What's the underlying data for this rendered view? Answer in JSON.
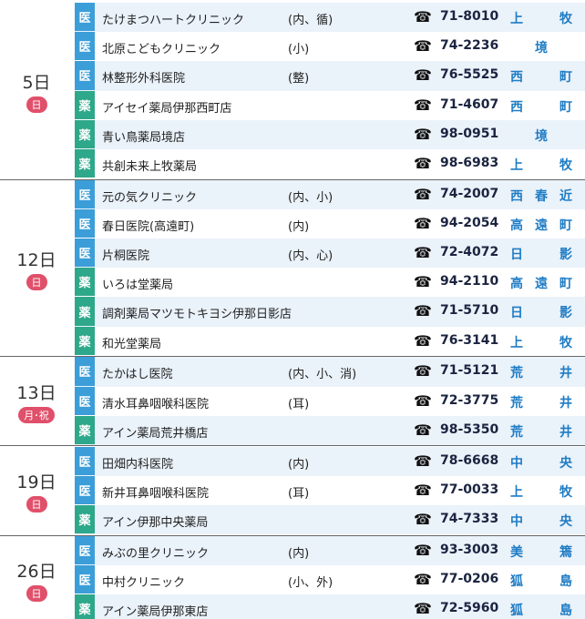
{
  "groups": [
    {
      "date": "5日",
      "day": "日",
      "rows": [
        {
          "type": "医",
          "name": "たけまつハートクリニック",
          "spec": "(内、循)",
          "phone": "71-8010",
          "area": "上牧"
        },
        {
          "type": "医",
          "name": "北原こどもクリニック",
          "spec": "(小)",
          "phone": "74-2236",
          "area": "境"
        },
        {
          "type": "医",
          "name": "林整形外科医院",
          "spec": "(整)",
          "phone": "76-5525",
          "area": "西町"
        },
        {
          "type": "薬",
          "name": "アイセイ薬局伊那西町店",
          "phone": "71-4607",
          "area": "西町"
        },
        {
          "type": "薬",
          "name": "青い鳥薬局境店",
          "phone": "98-0951",
          "area": "境"
        },
        {
          "type": "薬",
          "name": "共創未来上牧薬局",
          "phone": "98-6983",
          "area": "上牧"
        }
      ]
    },
    {
      "date": "12日",
      "day": "日",
      "rows": [
        {
          "type": "医",
          "name": "元の気クリニック",
          "spec": "(内、小)",
          "phone": "74-2007",
          "area": "西春近"
        },
        {
          "type": "医",
          "name": "春日医院(高遠町)",
          "spec": "(内)",
          "phone": "94-2054",
          "area": "高遠町"
        },
        {
          "type": "医",
          "name": "片桐医院",
          "spec": "(内、心)",
          "phone": "72-4072",
          "area": "日影"
        },
        {
          "type": "薬",
          "name": "いろは堂薬局",
          "phone": "94-2110",
          "area": "高遠町"
        },
        {
          "type": "薬",
          "name": "調剤薬局マツモトキヨシ伊那日影店",
          "phone": "71-5710",
          "area": "日影"
        },
        {
          "type": "薬",
          "name": "和光堂薬局",
          "phone": "76-3141",
          "area": "上牧"
        }
      ]
    },
    {
      "date": "13日",
      "day": "月･祝",
      "rows": [
        {
          "type": "医",
          "name": "たかはし医院",
          "spec": "(内、小、消)",
          "phone": "71-5121",
          "area": "荒井"
        },
        {
          "type": "医",
          "name": "清水耳鼻咽喉科医院",
          "spec": "(耳)",
          "phone": "72-3775",
          "area": "荒井"
        },
        {
          "type": "薬",
          "name": "アイン薬局荒井橋店",
          "phone": "98-5350",
          "area": "荒井"
        }
      ]
    },
    {
      "date": "19日",
      "day": "日",
      "rows": [
        {
          "type": "医",
          "name": "田畑内科医院",
          "spec": "(内)",
          "phone": "78-6668",
          "area": "中央"
        },
        {
          "type": "医",
          "name": "新井耳鼻咽喉科医院",
          "spec": "(耳)",
          "phone": "77-0033",
          "area": "上牧"
        },
        {
          "type": "薬",
          "name": "アイン伊那中央薬局",
          "phone": "74-7333",
          "area": "中央"
        }
      ]
    },
    {
      "date": "26日",
      "day": "日",
      "rows": [
        {
          "type": "医",
          "name": "みぶの里クリニック",
          "spec": "(内)",
          "phone": "93-3003",
          "area": "美篶"
        },
        {
          "type": "医",
          "name": "中村クリニック",
          "spec": "(小、外)",
          "phone": "77-0206",
          "area": "狐島"
        },
        {
          "type": "薬",
          "name": "アイン薬局伊那東店",
          "phone": "72-5960",
          "area": "狐島"
        }
      ]
    }
  ]
}
